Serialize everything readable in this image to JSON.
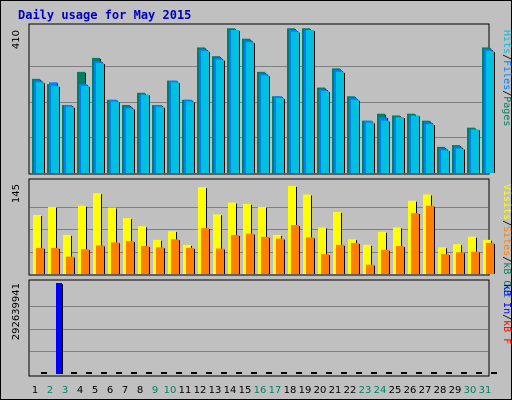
{
  "title": "Daily usage for May 2015",
  "colors": {
    "hits": "#00c0e0",
    "files": "#0080ff",
    "pages": "#008060",
    "visits": "#ffff00",
    "sites": "#ff8000",
    "kbin": "#0000ff",
    "kbout": "#008060",
    "kbf": "#ff0000",
    "title": "#0000c0",
    "weekend_label": "#008060"
  },
  "chart_data": [
    {
      "type": "bar",
      "title": "Daily usage for May 2015",
      "panel": "top",
      "ymax_label": "410",
      "ylim": [
        0,
        410
      ],
      "legend_labels": [
        "Pages",
        "Files",
        "Hits"
      ],
      "categories": [
        "1",
        "2",
        "3",
        "4",
        "5",
        "6",
        "7",
        "8",
        "9",
        "10",
        "11",
        "12",
        "13",
        "14",
        "15",
        "16",
        "17",
        "18",
        "19",
        "20",
        "21",
        "22",
        "23",
        "24",
        "25",
        "26",
        "27",
        "28",
        "29",
        "30",
        "31"
      ],
      "weekend_days": [
        "2",
        "3",
        "9",
        "10",
        "16",
        "17",
        "23",
        "24",
        "30",
        "31"
      ],
      "series": [
        {
          "name": "Pages",
          "values": [
            270,
            255,
            195,
            290,
            330,
            210,
            195,
            230,
            195,
            265,
            210,
            360,
            335,
            415,
            385,
            290,
            220,
            415,
            415,
            245,
            300,
            220,
            150,
            170,
            165,
            170,
            150,
            75,
            80,
            130,
            360
          ]
        },
        {
          "name": "Files",
          "values": [
            265,
            260,
            195,
            255,
            320,
            210,
            190,
            225,
            195,
            265,
            210,
            355,
            330,
            410,
            380,
            285,
            220,
            410,
            410,
            240,
            295,
            215,
            150,
            160,
            160,
            165,
            145,
            70,
            75,
            125,
            355
          ]
        },
        {
          "name": "Hits",
          "values": [
            260,
            250,
            190,
            250,
            315,
            205,
            185,
            225,
            190,
            260,
            205,
            350,
            325,
            410,
            375,
            280,
            215,
            405,
            410,
            235,
            290,
            210,
            145,
            150,
            160,
            165,
            140,
            65,
            70,
            125,
            350
          ]
        }
      ]
    },
    {
      "type": "bar",
      "panel": "middle",
      "ymax_label": "145",
      "ylim": [
        0,
        145
      ],
      "legend_labels": [
        "Visits",
        "Sites",
        "kB Out"
      ],
      "series": [
        {
          "name": "Visits",
          "values": [
            95,
            108,
            63,
            110,
            130,
            107,
            90,
            77,
            55,
            69,
            47,
            140,
            96,
            115,
            113,
            108,
            63,
            142,
            128,
            75,
            100,
            56,
            47,
            68,
            75,
            118,
            128,
            43,
            48,
            60,
            55
          ]
        },
        {
          "name": "Sites",
          "values": [
            42,
            42,
            28,
            40,
            46,
            51,
            53,
            45,
            43,
            56,
            42,
            74,
            41,
            63,
            65,
            60,
            57,
            79,
            59,
            32,
            47,
            50,
            15,
            39,
            45,
            98,
            110,
            32,
            35,
            36,
            50
          ]
        }
      ]
    },
    {
      "type": "bar",
      "panel": "bottom",
      "ymax_label": "292639941",
      "ylim": [
        0,
        292639941
      ],
      "legend_labels": [
        "kB In",
        "kB F"
      ],
      "series": [
        {
          "name": "kB In",
          "values": [
            0,
            292639941,
            0,
            0,
            0,
            0,
            0,
            0,
            0,
            0,
            0,
            0,
            0,
            0,
            0,
            0,
            0,
            0,
            0,
            0,
            0,
            0,
            0,
            0,
            0,
            0,
            0,
            0,
            0,
            0,
            0
          ]
        }
      ]
    }
  ]
}
